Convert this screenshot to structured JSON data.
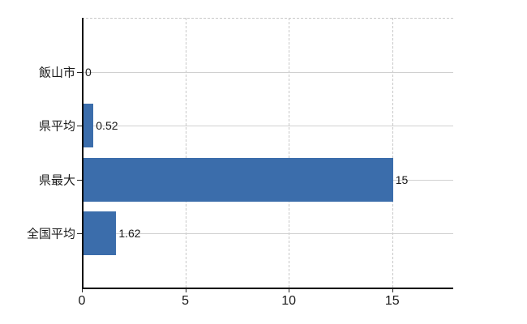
{
  "chart_data": {
    "type": "bar",
    "orientation": "horizontal",
    "title": "",
    "xlabel": "",
    "ylabel": "",
    "categories": [
      "飯山市",
      "県平均",
      "県最大",
      "全国平均"
    ],
    "values": [
      0,
      0.52,
      15,
      1.62
    ],
    "value_labels": [
      "0",
      "0.52",
      "15",
      "1.62"
    ],
    "x_ticks": [
      0,
      5,
      10,
      15
    ],
    "x_tick_labels": [
      "0",
      "5",
      "10",
      "15"
    ],
    "xlim": [
      0,
      17.95
    ],
    "legend": null,
    "grid": {
      "vertical_dashed_at": [
        5,
        10,
        15
      ],
      "top_boundary_dashed": true,
      "horizontal_row_lines": true
    },
    "colors": {
      "bar": "#3b6dab",
      "axis": "#000000",
      "grid_horizontal": "#d0d0d0",
      "grid_dashed": "#c8c8c8",
      "text": "#1a1a1a",
      "background": "#ffffff"
    }
  }
}
